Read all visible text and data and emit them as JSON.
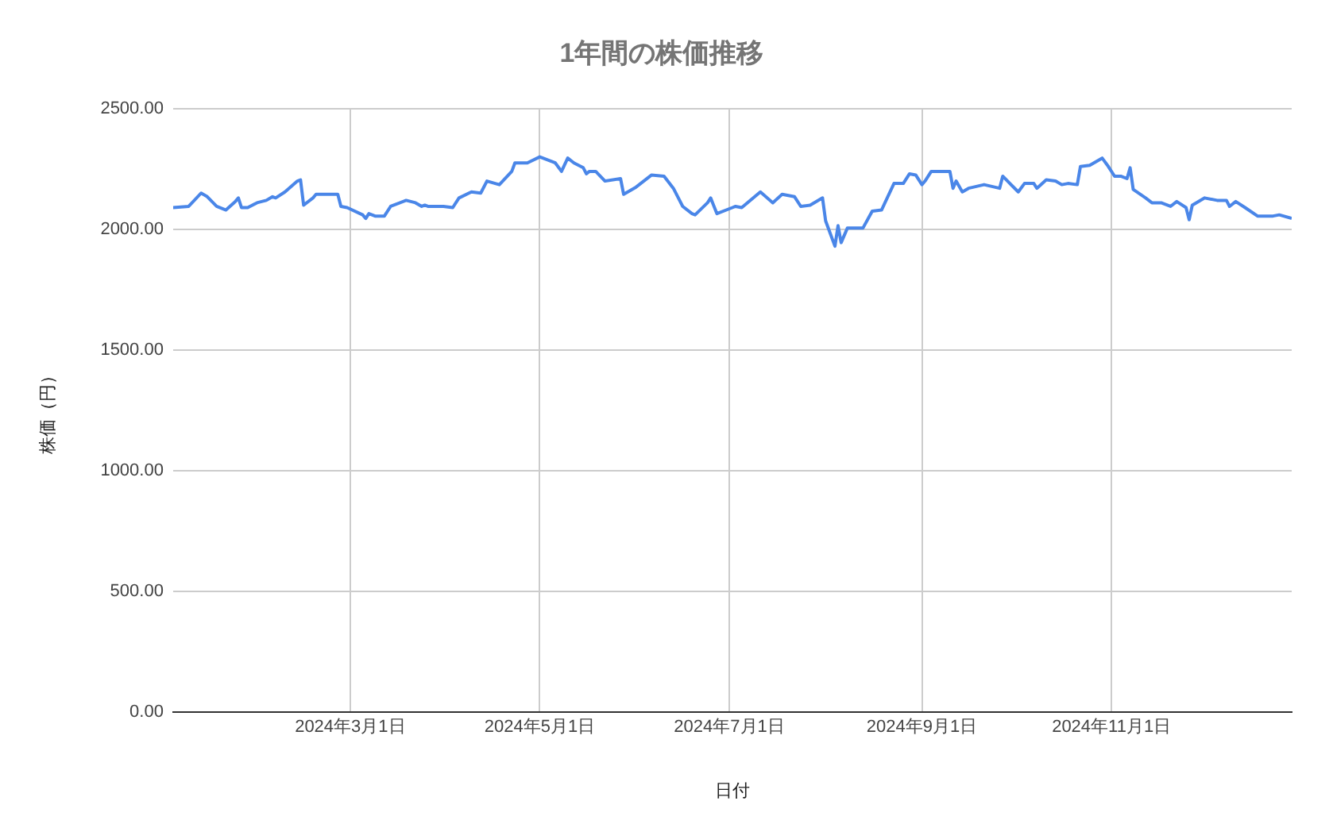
{
  "chart_data": {
    "type": "line",
    "title": "1年間の株価推移",
    "xlabel": "日付",
    "ylabel": "株価（円）",
    "x": [
      "2024-01-04",
      "2024-01-09",
      "2024-01-13",
      "2024-01-15",
      "2024-01-18",
      "2024-01-21",
      "2024-01-24",
      "2024-01-25",
      "2024-01-26",
      "2024-01-28",
      "2024-01-31",
      "2024-02-03",
      "2024-02-05",
      "2024-02-06",
      "2024-02-09",
      "2024-02-13",
      "2024-02-14",
      "2024-02-15",
      "2024-02-18",
      "2024-02-19",
      "2024-02-26",
      "2024-02-27",
      "2024-02-29",
      "2024-03-05",
      "2024-03-06",
      "2024-03-07",
      "2024-03-09",
      "2024-03-12",
      "2024-03-14",
      "2024-03-19",
      "2024-03-22",
      "2024-03-24",
      "2024-03-25",
      "2024-03-26",
      "2024-03-31",
      "2024-04-03",
      "2024-04-05",
      "2024-04-09",
      "2024-04-12",
      "2024-04-14",
      "2024-04-18",
      "2024-04-22",
      "2024-04-23",
      "2024-04-27",
      "2024-05-01",
      "2024-05-06",
      "2024-05-08",
      "2024-05-10",
      "2024-05-12",
      "2024-05-15",
      "2024-05-16",
      "2024-05-17",
      "2024-05-19",
      "2024-05-22",
      "2024-05-27",
      "2024-05-28",
      "2024-06-01",
      "2024-06-06",
      "2024-06-10",
      "2024-06-13",
      "2024-06-16",
      "2024-06-19",
      "2024-06-20",
      "2024-06-24",
      "2024-06-25",
      "2024-06-27",
      "2024-07-02",
      "2024-07-03",
      "2024-07-05",
      "2024-07-11",
      "2024-07-15",
      "2024-07-18",
      "2024-07-22",
      "2024-07-24",
      "2024-07-27",
      "2024-07-31",
      "2024-08-01",
      "2024-08-04",
      "2024-08-05",
      "2024-08-06",
      "2024-08-08",
      "2024-08-13",
      "2024-08-16",
      "2024-08-19",
      "2024-08-23",
      "2024-08-26",
      "2024-08-28",
      "2024-08-30",
      "2024-09-01",
      "2024-09-02",
      "2024-09-04",
      "2024-09-10",
      "2024-09-11",
      "2024-09-12",
      "2024-09-14",
      "2024-09-16",
      "2024-09-21",
      "2024-09-26",
      "2024-09-27",
      "2024-10-02",
      "2024-10-04",
      "2024-10-07",
      "2024-10-08",
      "2024-10-11",
      "2024-10-14",
      "2024-10-16",
      "2024-10-18",
      "2024-10-21",
      "2024-10-22",
      "2024-10-25",
      "2024-10-29",
      "2024-10-31",
      "2024-11-02",
      "2024-11-04",
      "2024-11-06",
      "2024-11-07",
      "2024-11-08",
      "2024-11-12",
      "2024-11-14",
      "2024-11-17",
      "2024-11-20",
      "2024-11-22",
      "2024-11-25",
      "2024-11-26",
      "2024-11-27",
      "2024-12-01",
      "2024-12-05",
      "2024-12-08",
      "2024-12-09",
      "2024-12-11",
      "2024-12-14",
      "2024-12-18",
      "2024-12-23",
      "2024-12-25",
      "2024-12-29"
    ],
    "series": [
      {
        "color": "#4a86e8",
        "values": [
          2090,
          2095,
          2150,
          2135,
          2095,
          2080,
          2115,
          2130,
          2090,
          2090,
          2110,
          2120,
          2135,
          2130,
          2155,
          2200,
          2205,
          2100,
          2130,
          2145,
          2145,
          2095,
          2090,
          2060,
          2045,
          2065,
          2055,
          2055,
          2095,
          2120,
          2110,
          2095,
          2100,
          2095,
          2095,
          2090,
          2130,
          2155,
          2150,
          2200,
          2185,
          2240,
          2275,
          2275,
          2300,
          2275,
          2240,
          2295,
          2275,
          2255,
          2230,
          2240,
          2240,
          2200,
          2210,
          2145,
          2175,
          2225,
          2220,
          2170,
          2095,
          2065,
          2060,
          2110,
          2130,
          2065,
          2090,
          2095,
          2090,
          2155,
          2110,
          2145,
          2135,
          2095,
          2100,
          2130,
          2035,
          1930,
          2015,
          1945,
          2005,
          2005,
          2075,
          2080,
          2190,
          2190,
          2230,
          2225,
          2185,
          2200,
          2240,
          2240,
          2170,
          2200,
          2155,
          2170,
          2185,
          2170,
          2220,
          2155,
          2190,
          2190,
          2170,
          2205,
          2200,
          2185,
          2190,
          2185,
          2260,
          2265,
          2295,
          2260,
          2220,
          2220,
          2210,
          2255,
          2165,
          2130,
          2110,
          2110,
          2095,
          2115,
          2090,
          2040,
          2100,
          2130,
          2120,
          2120,
          2095,
          2115,
          2090,
          2055,
          2055,
          2060,
          2045
        ]
      }
    ],
    "xlim": [
      "2024-01-04",
      "2024-12-29"
    ],
    "xticks": [
      {
        "value": "2024-03-01",
        "label": "2024年3月1日"
      },
      {
        "value": "2024-05-01",
        "label": "2024年5月1日"
      },
      {
        "value": "2024-07-01",
        "label": "2024年7月1日"
      },
      {
        "value": "2024-09-01",
        "label": "2024年9月1日"
      },
      {
        "value": "2024-11-01",
        "label": "2024年11月1日"
      }
    ],
    "ylim": [
      0,
      2500
    ],
    "yticks": [
      {
        "value": 0,
        "label": "0.00"
      },
      {
        "value": 500,
        "label": "500.00"
      },
      {
        "value": 1000,
        "label": "1000.00"
      },
      {
        "value": 1500,
        "label": "1500.00"
      },
      {
        "value": 2000,
        "label": "2000.00"
      },
      {
        "value": 2500,
        "label": "2500.00"
      }
    ],
    "grid": true,
    "legend": false,
    "marker": "none",
    "line_style": "solid"
  }
}
